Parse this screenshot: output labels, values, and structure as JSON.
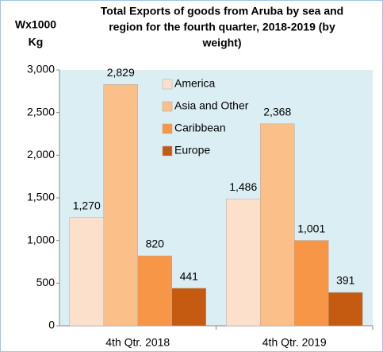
{
  "chart_data": {
    "type": "bar",
    "title": [
      "Total Exports of goods from Aruba by sea and",
      "region for the fourth quarter, 2018-2019 (by",
      "weight)"
    ],
    "ylabel": [
      "Wx1000",
      "Kg"
    ],
    "categories": [
      "4th Qtr. 2018",
      "4th Qtr. 2019"
    ],
    "series": [
      {
        "name": "America",
        "color": "#fde0cc",
        "values": [
          1270,
          1486
        ],
        "value_labels": [
          "1,270",
          "1,486"
        ]
      },
      {
        "name": "Asia and Other",
        "color": "#fbbf8a",
        "values": [
          2829,
          2368
        ],
        "value_labels": [
          "2,829",
          "2,368"
        ]
      },
      {
        "name": "Caribbean",
        "color": "#f79646",
        "values": [
          820,
          1001
        ],
        "value_labels": [
          "820",
          "1,001"
        ]
      },
      {
        "name": "Europe",
        "color": "#c55a11",
        "values": [
          441,
          391
        ],
        "value_labels": [
          "441",
          "391"
        ]
      }
    ],
    "ylim": [
      0,
      3000
    ],
    "yticks": [
      0,
      500,
      {
        "value": 1000,
        "label": "1,000"
      },
      {
        "value": 1500,
        "label": "1,500"
      },
      {
        "value": 2000,
        "label": "2,000"
      },
      {
        "value": 2500,
        "label": "2,500"
      },
      {
        "value": 3000,
        "label": "3,000"
      }
    ],
    "legend": "top"
  }
}
